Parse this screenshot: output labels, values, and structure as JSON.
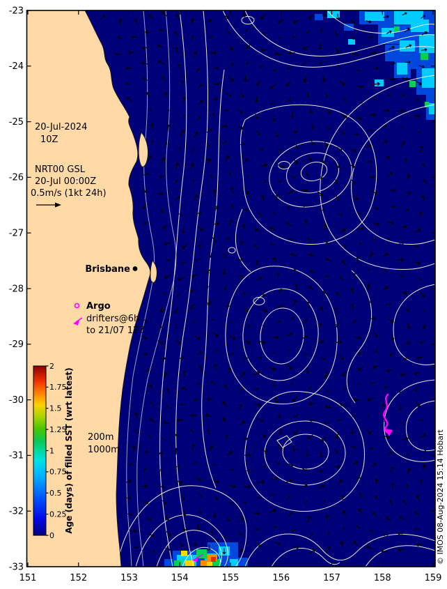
{
  "figure": {
    "credit": "© IMOS 08-Aug-2024 15:14 Hobart"
  },
  "axes": {
    "x_ticks": [
      "151",
      "152",
      "153",
      "154",
      "155",
      "156",
      "157",
      "158",
      "159"
    ],
    "y_ticks": [
      "-23",
      "-24",
      "-25",
      "-26",
      "-27",
      "-28",
      "-29",
      "-30",
      "-31",
      "-32",
      "-33"
    ]
  },
  "annotations": {
    "date_line1": "20-Jul-2024",
    "date_line2": "10Z",
    "model_name": "NRT00 GSL",
    "model_time": "20-Jul 00:00Z",
    "scale_label": "0.5m/s (1kt 24h)",
    "city": "Brisbane",
    "argo": "Argo",
    "drifters_line1": "drifters@6h",
    "drifters_line2": "to 21/07 12Z",
    "isobath_labels": [
      "200m",
      "1000m"
    ]
  },
  "colorbar": {
    "title": "Age (days) of filled SST (wrt latest)",
    "ticks": [
      "2",
      "1.75",
      "1.5",
      "1.25",
      "1",
      "0.75",
      "0.5",
      "0.25",
      "0"
    ],
    "min": 0,
    "max": 2
  },
  "colors": {
    "ocean": "#000078",
    "land": "#ffd9a6",
    "contour": "#faf7e2",
    "marker": "#ff00ff",
    "bathy": "#b9bcc8"
  }
}
